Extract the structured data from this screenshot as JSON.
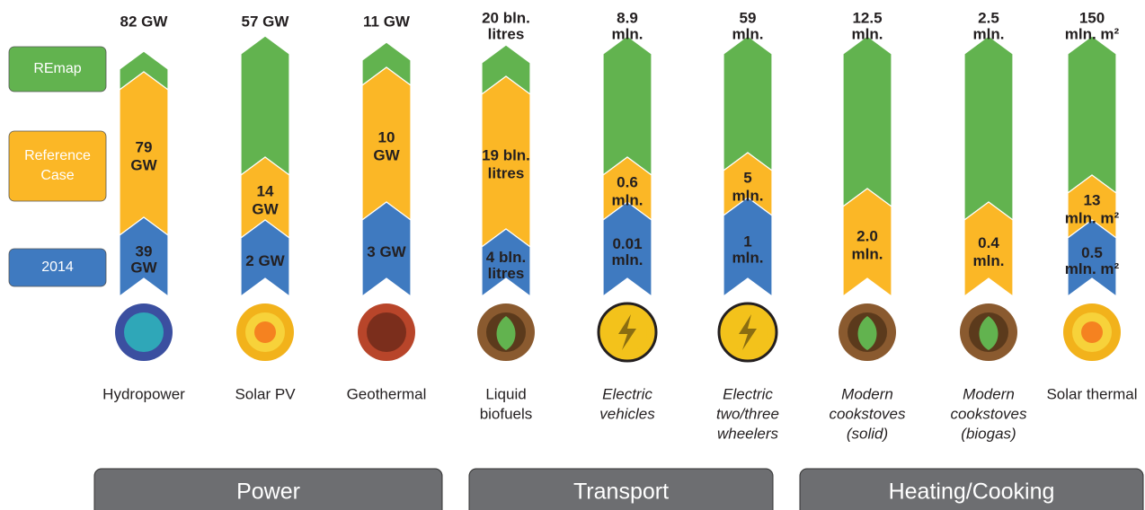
{
  "legend": [
    "REmap",
    "Reference Case",
    "2014"
  ],
  "columns": [
    {
      "top": [
        "82 GW"
      ],
      "reference": [
        "79",
        "GW"
      ],
      "base": [
        "39",
        "GW"
      ],
      "name": [
        "Hydropower"
      ],
      "italic": false
    },
    {
      "top": [
        "57 GW"
      ],
      "reference": [
        "14",
        "GW"
      ],
      "base": [
        "2 GW"
      ],
      "name": [
        "Solar PV"
      ],
      "italic": false
    },
    {
      "top": [
        "11 GW"
      ],
      "reference": [
        "10",
        "GW"
      ],
      "base": [
        "3 GW"
      ],
      "name": [
        "Geothermal"
      ],
      "italic": false
    },
    {
      "top": [
        "20 bln.",
        "litres"
      ],
      "reference": [
        "19 bln.",
        "litres"
      ],
      "base": [
        "4 bln.",
        "litres"
      ],
      "name": [
        "Liquid",
        "biofuels"
      ],
      "italic": false
    },
    {
      "top": [
        "8.9",
        "mln."
      ],
      "reference": [
        "0.6",
        "mln."
      ],
      "base": [
        "0.01",
        "mln."
      ],
      "name": [
        "Electric",
        "vehicles"
      ],
      "italic": true
    },
    {
      "top": [
        "59",
        "mln."
      ],
      "reference": [
        "5",
        "mln."
      ],
      "base": [
        "1",
        "mln."
      ],
      "name": [
        "Electric",
        "two/three",
        "wheelers"
      ],
      "italic": true
    },
    {
      "top": [
        "12.5",
        "mln."
      ],
      "reference": [
        "2.0",
        "mln."
      ],
      "name": [
        "Modern",
        "cookstoves",
        "(solid)"
      ],
      "italic": true
    },
    {
      "top": [
        "2.5",
        "mln."
      ],
      "reference": [
        "0.4",
        "mln."
      ],
      "name": [
        "Modern",
        "cookstoves",
        "(biogas)"
      ],
      "italic": true
    },
    {
      "top": [
        "150",
        "mln. m²"
      ],
      "reference": [
        "13",
        "mln. m²"
      ],
      "base": [
        "0.5",
        "mln. m²"
      ],
      "name": [
        "Solar thermal"
      ],
      "italic": false
    }
  ],
  "groups": [
    "Power",
    "Transport",
    "Heating/Cooking"
  ]
}
